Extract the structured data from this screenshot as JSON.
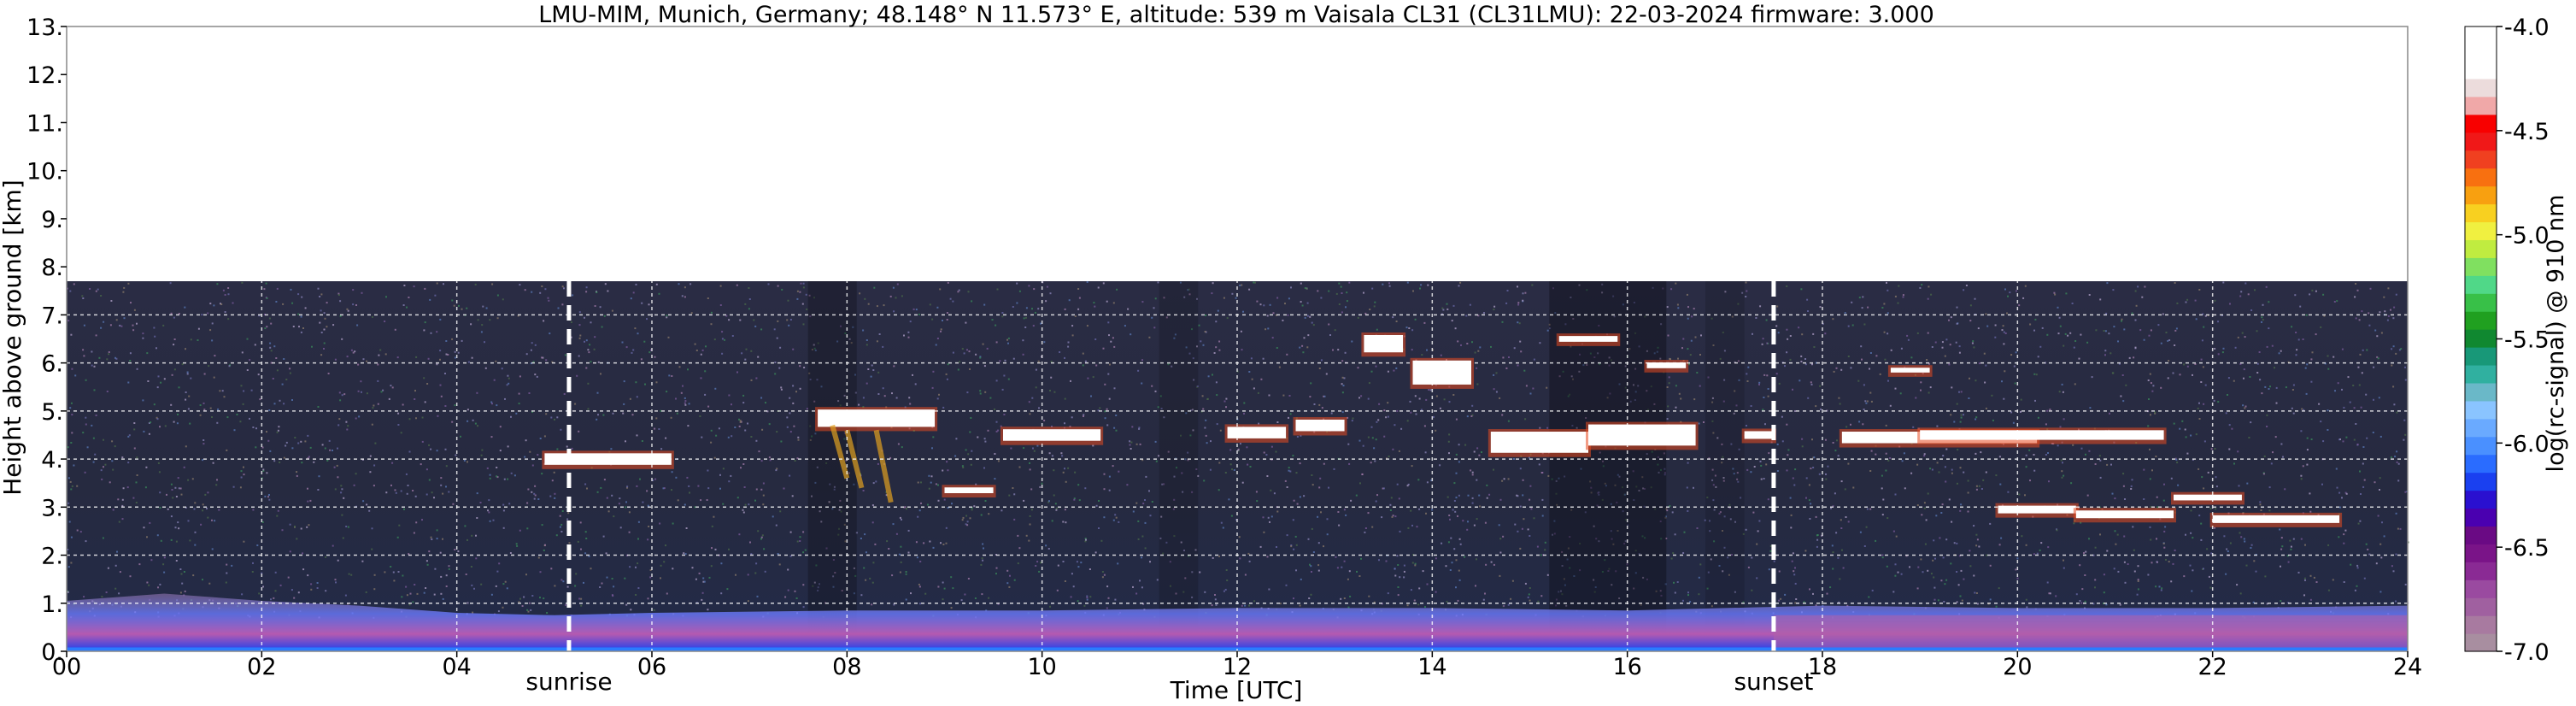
{
  "chart_data": {
    "type": "heatmap",
    "title": "LMU-MIM, Munich, Germany; 48.148° N 11.573° E, altitude: 539 m    Vaisala CL31 (CL31LMU): 22-03-2024    firmware: 3.000",
    "xlabel": "Time [UTC]",
    "ylabel": "Height above ground [km]",
    "xlim": [
      0,
      24
    ],
    "ylim": [
      0,
      13
    ],
    "x_ticks": [
      0,
      2,
      4,
      6,
      8,
      10,
      12,
      14,
      16,
      18,
      20,
      22,
      24
    ],
    "x_tick_labels": [
      "00",
      "02",
      "04",
      "06",
      "08",
      "10",
      "12",
      "14",
      "16",
      "18",
      "20",
      "22",
      "24"
    ],
    "y_ticks": [
      0,
      1,
      2,
      3,
      4,
      5,
      6,
      7,
      8,
      9,
      10,
      11,
      12,
      13
    ],
    "y_tick_labels": [
      "0.",
      "1.",
      "2.",
      "3.",
      "4.",
      "5.",
      "6.",
      "7.",
      "8.",
      "9.",
      "10.",
      "11.",
      "12.",
      "13."
    ],
    "grid": true,
    "data_top_km": 7.7,
    "markers": [
      {
        "label": "sunrise",
        "x": 5.15
      },
      {
        "label": "sunset",
        "x": 17.5
      }
    ],
    "colorbar": {
      "label": "log(rc-signal) @ 910 nm",
      "range": [
        -7.0,
        -4.0
      ],
      "ticks": [
        -4.0,
        -4.5,
        -5.0,
        -5.5,
        -6.0,
        -6.5,
        -7.0
      ],
      "tick_labels": [
        "-4.0",
        "-4.5",
        "-5.0",
        "-5.5",
        "-6.0",
        "-6.5",
        "-7.0"
      ],
      "colors": [
        "#a88ea0",
        "#a87aa0",
        "#a060a0",
        "#9a4aa0",
        "#8a2a94",
        "#7a1488",
        "#6a0a84",
        "#4a00b0",
        "#2a10d0",
        "#1a40f0",
        "#2a6cff",
        "#4a90ff",
        "#6aaaff",
        "#8ac4ff",
        "#6ab8c8",
        "#30b0a0",
        "#189878",
        "#108830",
        "#20a020",
        "#38c048",
        "#50d888",
        "#80e060",
        "#c0ec40",
        "#f0f040",
        "#f8d020",
        "#f8a010",
        "#f87010",
        "#f04020",
        "#f01818",
        "#f80000",
        "#f0a8a8",
        "#ecdcdc",
        "#ffffff"
      ]
    },
    "annotations": [
      "sunrise",
      "sunset"
    ]
  }
}
